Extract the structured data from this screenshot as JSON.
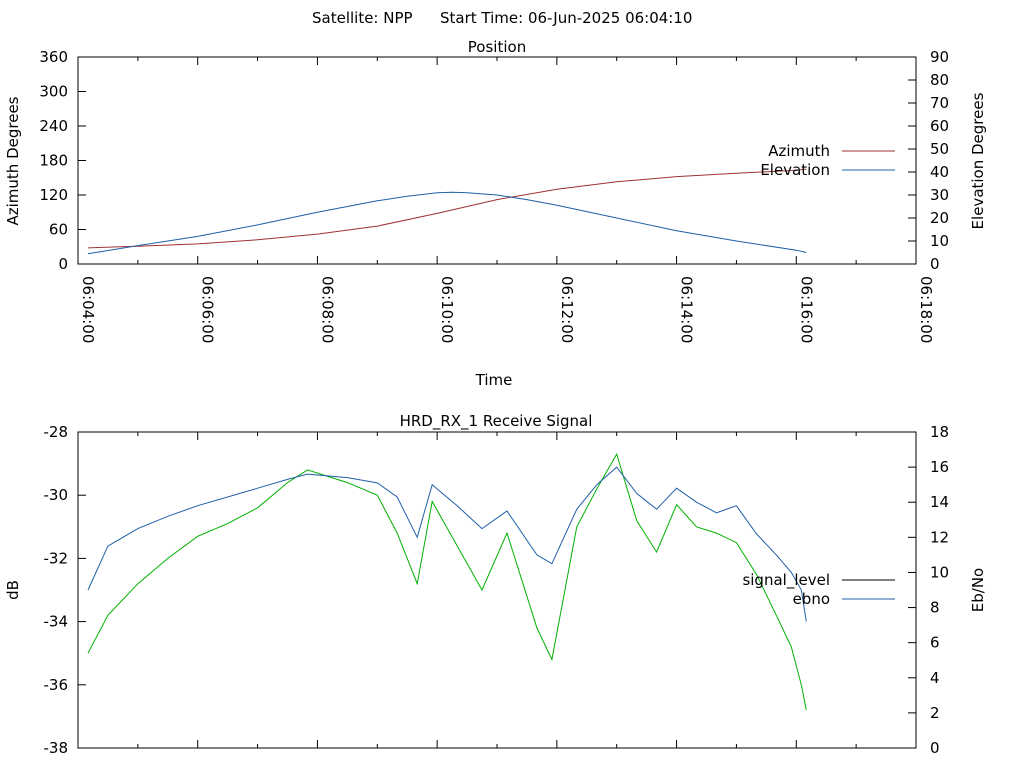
{
  "header": {
    "satellite_text": "Satellite: NPP",
    "start_time_text": "Start Time: 06-Jun-2025 06:04:10"
  },
  "colors": {
    "azimuth": "#a03030",
    "elevation": "#1f5fa8",
    "signal_level": "#00b000",
    "ebno": "#1f5fa8",
    "legend_signal_level": "#000000"
  },
  "chart_data": [
    {
      "type": "line",
      "title": "Position",
      "xlabel": "Time",
      "ylabel": "Azimuth Degrees",
      "y2label": "Elevation Degrees",
      "x_ticks": [
        "06:04:00",
        "06:06:00",
        "06:08:00",
        "06:10:00",
        "06:12:00",
        "06:14:00",
        "06:16:00",
        "06:18:00"
      ],
      "xlim": [
        "06:04:00",
        "06:18:00"
      ],
      "ylim": [
        0,
        360
      ],
      "y_ticks": [
        0,
        60,
        120,
        180,
        240,
        300,
        360
      ],
      "y2lim": [
        0,
        90
      ],
      "y2_ticks": [
        0,
        10,
        20,
        30,
        40,
        50,
        60,
        70,
        80,
        90
      ],
      "legend_position": "right",
      "series": [
        {
          "name": "Azimuth",
          "axis": "left",
          "x": [
            "06:04:10",
            "06:05:00",
            "06:06:00",
            "06:07:00",
            "06:08:00",
            "06:09:00",
            "06:10:00",
            "06:11:00",
            "06:12:00",
            "06:13:00",
            "06:14:00",
            "06:15:00",
            "06:16:00",
            "06:16:10"
          ],
          "values": [
            28,
            31,
            35,
            42,
            52,
            66,
            88,
            112,
            130,
            143,
            152,
            158,
            163,
            165
          ]
        },
        {
          "name": "Elevation",
          "axis": "right",
          "x": [
            "06:04:10",
            "06:05:00",
            "06:06:00",
            "06:07:00",
            "06:08:00",
            "06:09:00",
            "06:09:30",
            "06:10:00",
            "06:10:15",
            "06:10:30",
            "06:11:00",
            "06:11:30",
            "06:12:00",
            "06:13:00",
            "06:14:00",
            "06:15:00",
            "06:16:00",
            "06:16:10"
          ],
          "values": [
            4.5,
            8,
            12,
            17,
            22.5,
            27.5,
            29.5,
            31,
            31.2,
            31,
            30,
            28,
            25.5,
            20,
            14.5,
            10,
            6,
            5
          ]
        }
      ]
    },
    {
      "type": "line",
      "title": "HRD_RX_1 Receive Signal",
      "ylabel": "dB",
      "y2label": "Eb/No",
      "xlim": [
        "06:04:00",
        "06:18:00"
      ],
      "ylim": [
        -38,
        -28
      ],
      "y_ticks": [
        -38,
        -36,
        -34,
        -32,
        -30,
        -28
      ],
      "y2lim": [
        0,
        18
      ],
      "y2_ticks": [
        0,
        2,
        4,
        6,
        8,
        10,
        12,
        14,
        16,
        18
      ],
      "legend_position": "right",
      "series": [
        {
          "name": "signal_level",
          "axis": "left",
          "x": [
            "06:04:10",
            "06:04:30",
            "06:05:00",
            "06:05:30",
            "06:06:00",
            "06:06:30",
            "06:07:00",
            "06:07:30",
            "06:07:50",
            "06:08:30",
            "06:09:00",
            "06:09:20",
            "06:09:40",
            "06:09:55",
            "06:10:20",
            "06:10:45",
            "06:11:10",
            "06:11:40",
            "06:11:55",
            "06:12:20",
            "06:12:40",
            "06:13:00",
            "06:13:20",
            "06:13:40",
            "06:14:00",
            "06:14:20",
            "06:14:40",
            "06:15:00",
            "06:15:20",
            "06:15:40",
            "06:15:55",
            "06:16:05",
            "06:16:10"
          ],
          "values": [
            -35,
            -33.8,
            -32.8,
            -32.0,
            -31.3,
            -30.9,
            -30.4,
            -29.6,
            -29.2,
            -29.6,
            -30.0,
            -31.2,
            -32.8,
            -30.2,
            -31.6,
            -33.0,
            -31.2,
            -34.2,
            -35.2,
            -31.0,
            -29.8,
            -28.7,
            -30.8,
            -31.8,
            -30.3,
            -31.0,
            -31.2,
            -31.5,
            -32.5,
            -33.8,
            -34.8,
            -36.0,
            -36.8
          ]
        },
        {
          "name": "ebno",
          "axis": "right",
          "x": [
            "06:04:10",
            "06:04:30",
            "06:05:00",
            "06:05:30",
            "06:06:00",
            "06:06:30",
            "06:07:00",
            "06:07:30",
            "06:07:50",
            "06:08:30",
            "06:09:00",
            "06:09:20",
            "06:09:40",
            "06:09:55",
            "06:10:20",
            "06:10:45",
            "06:11:10",
            "06:11:40",
            "06:11:55",
            "06:12:20",
            "06:12:40",
            "06:13:00",
            "06:13:20",
            "06:13:40",
            "06:14:00",
            "06:14:20",
            "06:14:40",
            "06:15:00",
            "06:15:20",
            "06:15:40",
            "06:15:55",
            "06:16:05",
            "06:16:10"
          ],
          "values": [
            9,
            11.5,
            12.5,
            13.2,
            13.8,
            14.3,
            14.8,
            15.3,
            15.6,
            15.4,
            15.1,
            14.3,
            12.0,
            15.0,
            13.8,
            12.5,
            13.5,
            11.0,
            10.5,
            13.6,
            15.0,
            16.0,
            14.5,
            13.6,
            14.8,
            14.0,
            13.4,
            13.8,
            12.2,
            11.0,
            10.0,
            9.0,
            7.2
          ]
        }
      ]
    }
  ]
}
